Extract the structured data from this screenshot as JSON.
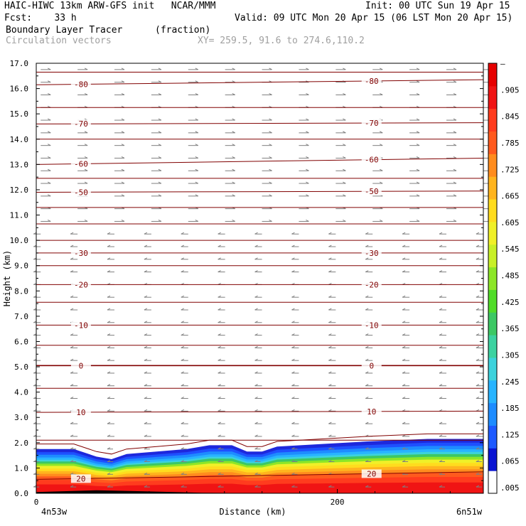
{
  "header": {
    "line1_left": "HAIC-HIWC 13km ARW-GFS init   NCAR/MMM",
    "line1_right": "Init: 00 UTC Sun 19 Apr 15",
    "line2_left": "Fcst:    33 h",
    "line2_right": "Valid: 09 UTC Mon 20 Apr 15 (06 LST Mon 20 Apr 15)",
    "field_name": "Boundary Layer Tracer",
    "field_units": "(fraction)",
    "vector_name": "Circulation vectors",
    "xy_range": "XY= 259.5, 91.6 to 274.6,110.2"
  },
  "chart_data": {
    "type": "heatmap",
    "xlabel": "Distance (km)",
    "ylabel": "Height (km)",
    "xlim": [
      0,
      297
    ],
    "ylim": [
      0,
      17
    ],
    "x_ticks": [
      0,
      200
    ],
    "x_end_labels": [
      "4n53w",
      "6n51w"
    ],
    "y_ticks": [
      "0.0",
      "1.0",
      "2.0",
      "3.0",
      "4.0",
      "5.0",
      "6.0",
      "7.0",
      "8.0",
      "9.0",
      "10.0",
      "11.0",
      "12.0",
      "13.0",
      "14.0",
      "15.0",
      "16.0",
      "17.0"
    ],
    "colorbar": {
      "labels": [
        ".005",
        ".065",
        ".125",
        ".185",
        ".245",
        ".305",
        ".365",
        ".425",
        ".485",
        ".545",
        ".605",
        ".665",
        ".725",
        ".785",
        ".845",
        ".905",
        "–"
      ],
      "colors": [
        "#ffffff",
        "#0a14d2",
        "#1e5aff",
        "#1e8cff",
        "#28b4ff",
        "#3cd2dc",
        "#3cd2a0",
        "#3cc864",
        "#50dc28",
        "#8ce628",
        "#c8f028",
        "#f0f028",
        "#ffdc1e",
        "#ffb41e",
        "#ff8c1e",
        "#ff5a1e",
        "#ff3c1e",
        "#f01414",
        "#e60000"
      ]
    },
    "tracer_top_km": [
      [
        0,
        1.75
      ],
      [
        10,
        1.75
      ],
      [
        25,
        1.75
      ],
      [
        40,
        1.45
      ],
      [
        50,
        1.35
      ],
      [
        60,
        1.55
      ],
      [
        80,
        1.65
      ],
      [
        100,
        1.75
      ],
      [
        115,
        1.9
      ],
      [
        130,
        1.9
      ],
      [
        140,
        1.65
      ],
      [
        150,
        1.65
      ],
      [
        160,
        1.85
      ],
      [
        190,
        1.95
      ],
      [
        220,
        2.05
      ],
      [
        260,
        2.15
      ],
      [
        297,
        2.15
      ]
    ],
    "temperature_contours_C": [
      {
        "value": -80,
        "label": "-80",
        "z": [
          16.15,
          16.35
        ]
      },
      {
        "value": -70,
        "label": "-70",
        "z": [
          14.6,
          14.65
        ]
      },
      {
        "value": -60,
        "label": "-60",
        "z": [
          13.0,
          13.25
        ]
      },
      {
        "value": -50,
        "label": "-50",
        "z": [
          11.9,
          11.95
        ]
      },
      {
        "value": -30,
        "label": "-30",
        "z": [
          9.5,
          9.5
        ]
      },
      {
        "value": -20,
        "label": "-20",
        "z": [
          8.25,
          8.25
        ]
      },
      {
        "value": -10,
        "label": "-10",
        "z": [
          6.65,
          6.65
        ]
      },
      {
        "value": 0,
        "label": "0",
        "z": [
          5.05,
          5.05
        ]
      },
      {
        "value": 10,
        "label": "10",
        "z": [
          3.2,
          3.25
        ]
      },
      {
        "value": 20,
        "label": "20",
        "z": [
          0.55,
          0.85
        ]
      }
    ],
    "other_contour_heights_km": [
      16.65,
      15.25,
      14.0,
      12.45,
      11.3,
      10.65,
      10.0,
      9.0,
      7.55,
      5.85,
      4.15,
      2.1
    ],
    "grid": false,
    "wind_vectors": {
      "upper_direction": "rightward",
      "middle_direction": "leftward",
      "transition_height_km": 10.5
    }
  }
}
